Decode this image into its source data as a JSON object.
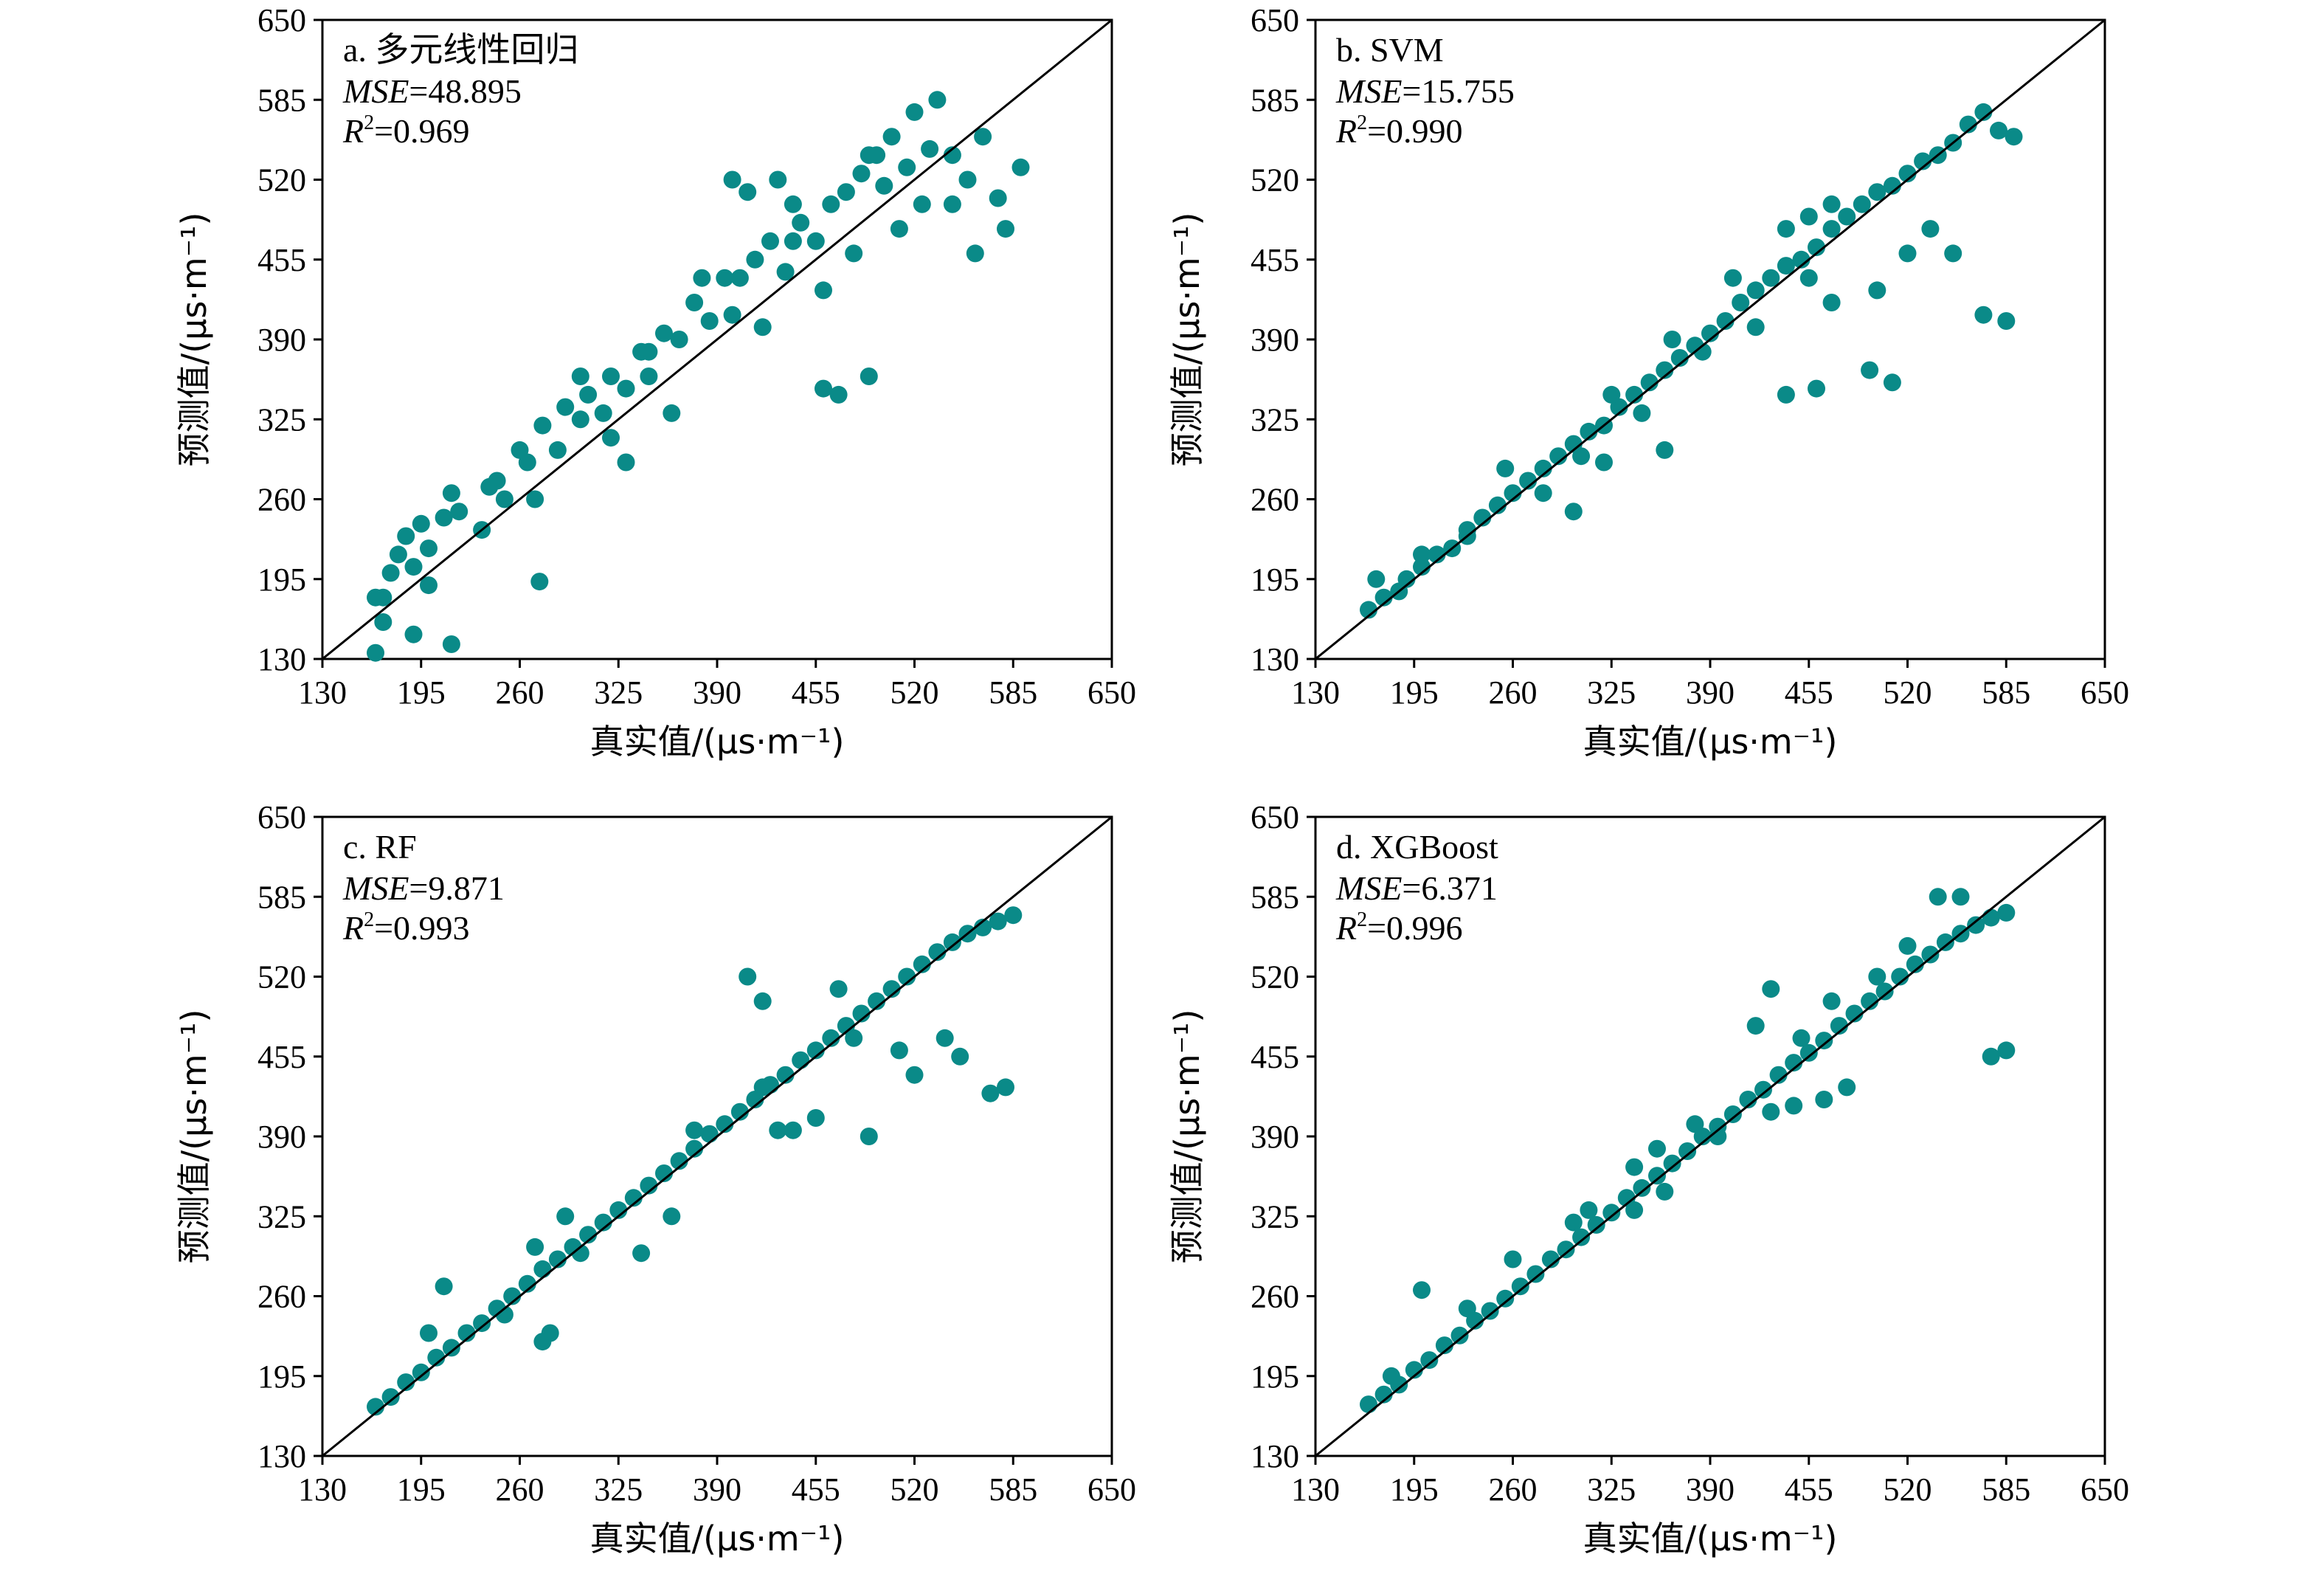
{
  "figure": {
    "x_axis_title": "真实值/(μs·m⁻¹)",
    "y_axis_title": "预测值/(μs·m⁻¹)"
  },
  "chart_data": [
    {
      "type": "scatter",
      "title": "a. 多元线性回归",
      "metric_1_name": "MSE",
      "metric_1_value": "=48.895",
      "metric_2_name": "R",
      "metric_2_sup": "2",
      "metric_2_value": "=0.969",
      "xlim": [
        130,
        650
      ],
      "ylim": [
        130,
        650
      ],
      "xticks": [
        130,
        195,
        260,
        325,
        390,
        455,
        520,
        585,
        650
      ],
      "yticks": [
        130,
        195,
        260,
        325,
        390,
        455,
        520,
        585,
        650
      ],
      "reference_line": "y = x",
      "point_color": "#0a8a88",
      "points": [
        [
          165,
          135
        ],
        [
          170,
          180
        ],
        [
          175,
          200
        ],
        [
          180,
          215
        ],
        [
          185,
          230
        ],
        [
          190,
          205
        ],
        [
          195,
          240
        ],
        [
          200,
          220
        ],
        [
          210,
          245
        ],
        [
          215,
          265
        ],
        [
          220,
          250
        ],
        [
          235,
          235
        ],
        [
          245,
          275
        ],
        [
          250,
          260
        ],
        [
          260,
          300
        ],
        [
          265,
          290
        ],
        [
          275,
          320
        ],
        [
          285,
          300
        ],
        [
          290,
          335
        ],
        [
          300,
          325
        ],
        [
          305,
          345
        ],
        [
          315,
          330
        ],
        [
          320,
          360
        ],
        [
          330,
          350
        ],
        [
          340,
          380
        ],
        [
          345,
          360
        ],
        [
          355,
          395
        ],
        [
          365,
          390
        ],
        [
          375,
          420
        ],
        [
          385,
          405
        ],
        [
          395,
          440
        ],
        [
          405,
          440
        ],
        [
          415,
          455
        ],
        [
          425,
          470
        ],
        [
          435,
          445
        ],
        [
          445,
          485
        ],
        [
          455,
          470
        ],
        [
          465,
          500
        ],
        [
          475,
          510
        ],
        [
          485,
          525
        ],
        [
          495,
          540
        ],
        [
          500,
          515
        ],
        [
          505,
          555
        ],
        [
          515,
          530
        ],
        [
          520,
          575
        ],
        [
          525,
          500
        ],
        [
          535,
          585
        ],
        [
          545,
          540
        ],
        [
          555,
          520
        ],
        [
          565,
          555
        ],
        [
          575,
          505
        ],
        [
          580,
          480
        ],
        [
          590,
          530
        ],
        [
          165,
          180
        ],
        [
          200,
          190
        ],
        [
          240,
          270
        ],
        [
          270,
          260
        ],
        [
          300,
          360
        ],
        [
          320,
          310
        ],
        [
          330,
          290
        ],
        [
          345,
          380
        ],
        [
          360,
          330
        ],
        [
          380,
          440
        ],
        [
          400,
          410
        ],
        [
          420,
          400
        ],
        [
          440,
          470
        ],
        [
          460,
          430
        ],
        [
          480,
          460
        ],
        [
          490,
          540
        ],
        [
          510,
          480
        ],
        [
          530,
          545
        ],
        [
          545,
          500
        ],
        [
          560,
          460
        ],
        [
          430,
          520
        ],
        [
          440,
          500
        ],
        [
          460,
          350
        ],
        [
          470,
          345
        ],
        [
          490,
          360
        ],
        [
          400,
          520
        ],
        [
          410,
          510
        ],
        [
          273,
          193
        ],
        [
          215,
          142
        ],
        [
          170,
          160
        ],
        [
          190,
          150
        ]
      ]
    },
    {
      "type": "scatter",
      "title": "b. SVM",
      "metric_1_name": "MSE",
      "metric_1_value": "=15.755",
      "metric_2_name": "R",
      "metric_2_sup": "2",
      "metric_2_value": "=0.990",
      "xlim": [
        130,
        650
      ],
      "ylim": [
        130,
        650
      ],
      "xticks": [
        130,
        195,
        260,
        325,
        390,
        455,
        520,
        585,
        650
      ],
      "yticks": [
        130,
        195,
        260,
        325,
        390,
        455,
        520,
        585,
        650
      ],
      "reference_line": "y = x",
      "point_color": "#0a8a88",
      "points": [
        [
          165,
          170
        ],
        [
          175,
          180
        ],
        [
          185,
          185
        ],
        [
          190,
          195
        ],
        [
          200,
          205
        ],
        [
          210,
          215
        ],
        [
          220,
          220
        ],
        [
          230,
          235
        ],
        [
          240,
          245
        ],
        [
          250,
          255
        ],
        [
          260,
          265
        ],
        [
          270,
          275
        ],
        [
          280,
          285
        ],
        [
          290,
          295
        ],
        [
          300,
          305
        ],
        [
          310,
          315
        ],
        [
          320,
          320
        ],
        [
          330,
          335
        ],
        [
          340,
          345
        ],
        [
          350,
          355
        ],
        [
          360,
          365
        ],
        [
          370,
          375
        ],
        [
          380,
          385
        ],
        [
          390,
          395
        ],
        [
          400,
          405
        ],
        [
          410,
          420
        ],
        [
          420,
          430
        ],
        [
          430,
          440
        ],
        [
          440,
          450
        ],
        [
          450,
          455
        ],
        [
          460,
          465
        ],
        [
          470,
          480
        ],
        [
          480,
          490
        ],
        [
          490,
          500
        ],
        [
          500,
          510
        ],
        [
          510,
          515
        ],
        [
          520,
          525
        ],
        [
          530,
          535
        ],
        [
          540,
          540
        ],
        [
          550,
          550
        ],
        [
          560,
          565
        ],
        [
          570,
          575
        ],
        [
          580,
          560
        ],
        [
          590,
          555
        ],
        [
          170,
          195
        ],
        [
          200,
          215
        ],
        [
          230,
          230
        ],
        [
          255,
          285
        ],
        [
          280,
          265
        ],
        [
          305,
          295
        ],
        [
          325,
          345
        ],
        [
          345,
          330
        ],
        [
          365,
          390
        ],
        [
          385,
          380
        ],
        [
          405,
          440
        ],
        [
          420,
          400
        ],
        [
          440,
          480
        ],
        [
          455,
          440
        ],
        [
          470,
          420
        ],
        [
          500,
          430
        ],
        [
          520,
          460
        ],
        [
          535,
          480
        ],
        [
          550,
          460
        ],
        [
          570,
          410
        ],
        [
          585,
          405
        ],
        [
          455,
          490
        ],
        [
          470,
          500
        ],
        [
          440,
          345
        ],
        [
          460,
          350
        ],
        [
          495,
          365
        ],
        [
          510,
          355
        ],
        [
          320,
          290
        ],
        [
          300,
          250
        ],
        [
          360,
          300
        ]
      ]
    },
    {
      "type": "scatter",
      "title": "c. RF",
      "metric_1_name": "MSE",
      "metric_1_value": "=9.871",
      "metric_2_name": "R",
      "metric_2_sup": "2",
      "metric_2_value": "=0.993",
      "xlim": [
        130,
        650
      ],
      "ylim": [
        130,
        650
      ],
      "xticks": [
        130,
        195,
        260,
        325,
        390,
        455,
        520,
        585,
        650
      ],
      "yticks": [
        130,
        195,
        260,
        325,
        390,
        455,
        520,
        585,
        650
      ],
      "reference_line": "y = x",
      "point_color": "#0a8a88",
      "points": [
        [
          165,
          170
        ],
        [
          175,
          178
        ],
        [
          185,
          190
        ],
        [
          195,
          198
        ],
        [
          205,
          210
        ],
        [
          215,
          218
        ],
        [
          225,
          230
        ],
        [
          235,
          238
        ],
        [
          245,
          250
        ],
        [
          255,
          260
        ],
        [
          265,
          270
        ],
        [
          275,
          282
        ],
        [
          285,
          290
        ],
        [
          295,
          300
        ],
        [
          305,
          310
        ],
        [
          315,
          320
        ],
        [
          325,
          330
        ],
        [
          335,
          340
        ],
        [
          345,
          350
        ],
        [
          355,
          360
        ],
        [
          365,
          370
        ],
        [
          375,
          380
        ],
        [
          385,
          392
        ],
        [
          395,
          400
        ],
        [
          405,
          410
        ],
        [
          415,
          420
        ],
        [
          425,
          432
        ],
        [
          435,
          440
        ],
        [
          445,
          452
        ],
        [
          455,
          460
        ],
        [
          465,
          470
        ],
        [
          475,
          480
        ],
        [
          485,
          490
        ],
        [
          495,
          500
        ],
        [
          505,
          510
        ],
        [
          515,
          520
        ],
        [
          525,
          530
        ],
        [
          535,
          540
        ],
        [
          545,
          548
        ],
        [
          555,
          555
        ],
        [
          565,
          560
        ],
        [
          575,
          565
        ],
        [
          585,
          570
        ],
        [
          200,
          230
        ],
        [
          210,
          268
        ],
        [
          250,
          245
        ],
        [
          270,
          300
        ],
        [
          290,
          325
        ],
        [
          300,
          295
        ],
        [
          340,
          295
        ],
        [
          360,
          325
        ],
        [
          375,
          395
        ],
        [
          420,
          430
        ],
        [
          430,
          395
        ],
        [
          470,
          510
        ],
        [
          480,
          470
        ],
        [
          510,
          460
        ],
        [
          520,
          440
        ],
        [
          540,
          470
        ],
        [
          550,
          455
        ],
        [
          570,
          425
        ],
        [
          580,
          430
        ],
        [
          440,
          395
        ],
        [
          455,
          405
        ],
        [
          490,
          390
        ],
        [
          410,
          520
        ],
        [
          420,
          500
        ],
        [
          280,
          230
        ],
        [
          275,
          223
        ]
      ]
    },
    {
      "type": "scatter",
      "title": "d. XGBoost",
      "metric_1_name": "MSE",
      "metric_1_value": "=6.371",
      "metric_2_name": "R",
      "metric_2_sup": "2",
      "metric_2_value": "=0.996",
      "xlim": [
        130,
        650
      ],
      "ylim": [
        130,
        650
      ],
      "xticks": [
        130,
        195,
        260,
        325,
        390,
        455,
        520,
        585,
        650
      ],
      "yticks": [
        130,
        195,
        260,
        325,
        390,
        455,
        520,
        585,
        650
      ],
      "reference_line": "y = x",
      "point_color": "#0a8a88",
      "points": [
        [
          165,
          172
        ],
        [
          175,
          180
        ],
        [
          185,
          188
        ],
        [
          195,
          200
        ],
        [
          205,
          208
        ],
        [
          215,
          220
        ],
        [
          225,
          228
        ],
        [
          235,
          240
        ],
        [
          245,
          248
        ],
        [
          255,
          258
        ],
        [
          265,
          268
        ],
        [
          275,
          278
        ],
        [
          285,
          290
        ],
        [
          295,
          298
        ],
        [
          305,
          308
        ],
        [
          315,
          318
        ],
        [
          325,
          328
        ],
        [
          335,
          340
        ],
        [
          345,
          348
        ],
        [
          355,
          358
        ],
        [
          365,
          368
        ],
        [
          375,
          378
        ],
        [
          385,
          390
        ],
        [
          395,
          398
        ],
        [
          405,
          408
        ],
        [
          415,
          420
        ],
        [
          425,
          428
        ],
        [
          435,
          440
        ],
        [
          445,
          450
        ],
        [
          455,
          458
        ],
        [
          465,
          468
        ],
        [
          475,
          480
        ],
        [
          485,
          490
        ],
        [
          495,
          500
        ],
        [
          505,
          508
        ],
        [
          515,
          520
        ],
        [
          525,
          530
        ],
        [
          535,
          538
        ],
        [
          545,
          548
        ],
        [
          555,
          555
        ],
        [
          565,
          562
        ],
        [
          575,
          568
        ],
        [
          585,
          572
        ],
        [
          180,
          195
        ],
        [
          200,
          265
        ],
        [
          230,
          250
        ],
        [
          260,
          290
        ],
        [
          300,
          320
        ],
        [
          310,
          330
        ],
        [
          340,
          365
        ],
        [
          355,
          380
        ],
        [
          380,
          400
        ],
        [
          395,
          390
        ],
        [
          420,
          480
        ],
        [
          430,
          510
        ],
        [
          450,
          470
        ],
        [
          470,
          500
        ],
        [
          500,
          520
        ],
        [
          520,
          545
        ],
        [
          540,
          585
        ],
        [
          555,
          585
        ],
        [
          575,
          455
        ],
        [
          585,
          460
        ],
        [
          430,
          410
        ],
        [
          445,
          415
        ],
        [
          465,
          420
        ],
        [
          480,
          430
        ],
        [
          340,
          330
        ],
        [
          360,
          345
        ]
      ]
    }
  ]
}
